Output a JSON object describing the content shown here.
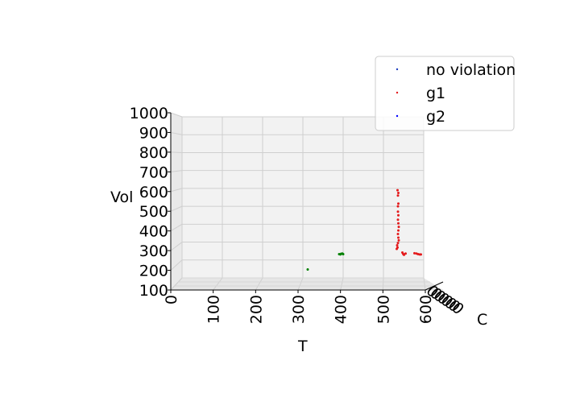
{
  "chart_data": {
    "type": "scatter",
    "projection": "3d",
    "xlabel": "T",
    "ylabel": "C",
    "zlabel": "Vol",
    "xlim": [
      0,
      600
    ],
    "zlim": [
      100,
      1000
    ],
    "x_ticks": [
      "0",
      "100",
      "200",
      "300",
      "400",
      "500",
      "600"
    ],
    "z_ticks": [
      "100",
      "200",
      "300",
      "400",
      "500",
      "600",
      "700",
      "800",
      "900",
      "1000"
    ],
    "y_ticks": [
      "0",
      "0",
      "0",
      "0",
      "0",
      "0",
      "0",
      "0"
    ],
    "grid": true,
    "legend_position": "top-right",
    "legend": [
      {
        "label": "no violation",
        "color": "#1f3fbf"
      },
      {
        "label": "g1",
        "color": "#e41a1c"
      },
      {
        "label": "g2",
        "color": "#0000ff"
      }
    ],
    "series": [
      {
        "color": "#008000",
        "points": [
          {
            "x": 312,
            "z": 147
          },
          {
            "x": 390,
            "z": 233
          },
          {
            "x": 395,
            "z": 235
          },
          {
            "x": 400,
            "z": 233
          },
          {
            "x": 393,
            "z": 231
          },
          {
            "x": 398,
            "z": 236
          }
        ]
      },
      {
        "name": "g1",
        "color": "#e41a1c",
        "points": [
          {
            "x": 535,
            "z": 590
          },
          {
            "x": 537,
            "z": 575
          },
          {
            "x": 536,
            "z": 560
          },
          {
            "x": 537,
            "z": 515
          },
          {
            "x": 536,
            "z": 500
          },
          {
            "x": 536,
            "z": 470
          },
          {
            "x": 537,
            "z": 450
          },
          {
            "x": 536,
            "z": 425
          },
          {
            "x": 537,
            "z": 405
          },
          {
            "x": 538,
            "z": 385
          },
          {
            "x": 537,
            "z": 365
          },
          {
            "x": 536,
            "z": 345
          },
          {
            "x": 537,
            "z": 325
          },
          {
            "x": 538,
            "z": 310
          },
          {
            "x": 536,
            "z": 295
          },
          {
            "x": 534,
            "z": 282
          },
          {
            "x": 535,
            "z": 270
          },
          {
            "x": 533,
            "z": 262
          },
          {
            "x": 547,
            "z": 242
          },
          {
            "x": 549,
            "z": 234
          },
          {
            "x": 551,
            "z": 229
          },
          {
            "x": 555,
            "z": 236
          },
          {
            "x": 577,
            "z": 238
          },
          {
            "x": 582,
            "z": 236
          },
          {
            "x": 586,
            "z": 233
          },
          {
            "x": 590,
            "z": 231
          },
          {
            "x": 593,
            "z": 231
          }
        ]
      }
    ]
  }
}
